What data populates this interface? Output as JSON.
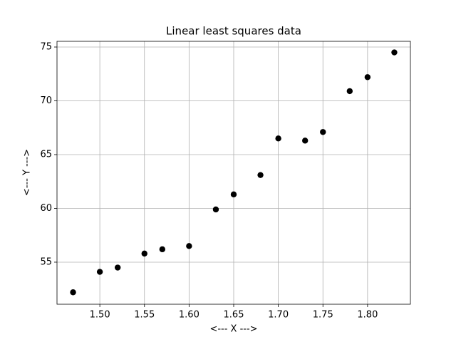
{
  "chart_data": {
    "type": "scatter",
    "title": "Linear least squares data",
    "x_label": "<--- X --->",
    "y_label": "<--- Y --->",
    "color": "#000000",
    "grid": true,
    "x": [
      1.47,
      1.5,
      1.52,
      1.55,
      1.57,
      1.6,
      1.63,
      1.65,
      1.68,
      1.7,
      1.73,
      1.75,
      1.78,
      1.8,
      1.83
    ],
    "values": [
      52.2,
      54.1,
      54.5,
      55.8,
      56.2,
      56.5,
      59.9,
      61.3,
      63.1,
      66.5,
      66.3,
      67.1,
      70.9,
      72.2,
      74.5
    ],
    "xlim": [
      1.452,
      1.848
    ],
    "xticks": [
      {
        "value": 1.5,
        "label": "1.50"
      },
      {
        "value": 1.55,
        "label": "1.55"
      },
      {
        "value": 1.6,
        "label": "1.60"
      },
      {
        "value": 1.65,
        "label": "1.65"
      },
      {
        "value": 1.7,
        "label": "1.70"
      },
      {
        "value": 1.75,
        "label": "1.75"
      },
      {
        "value": 1.8,
        "label": "1.80"
      }
    ],
    "ylim": [
      51.09,
      75.53
    ],
    "yticks": [
      55,
      60,
      65,
      70,
      75
    ]
  }
}
